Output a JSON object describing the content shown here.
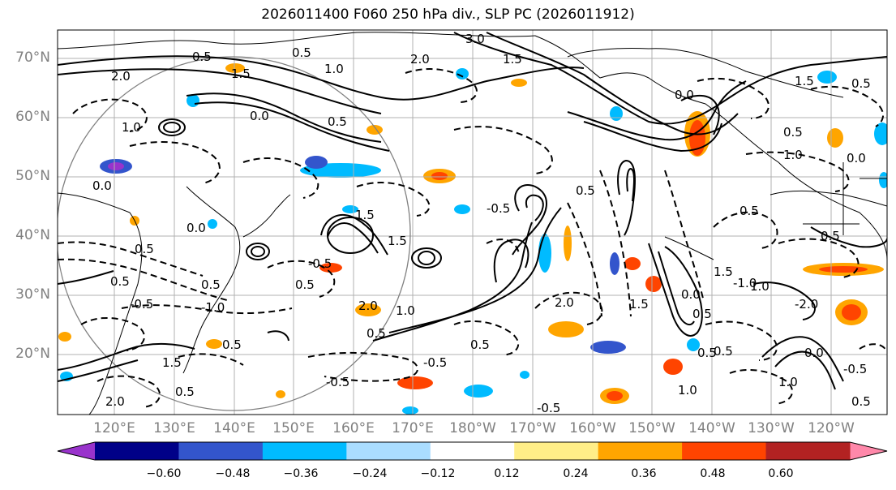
{
  "title": "2026011400 F060 250 hPa div., SLP PC (2026011912)",
  "lat_labels": [
    "70°N",
    "60°N",
    "50°N",
    "40°N",
    "30°N",
    "20°N"
  ],
  "lon_labels": [
    "120°E",
    "130°E",
    "140°E",
    "150°E",
    "160°E",
    "170°E",
    "180°W",
    "170°W",
    "160°W",
    "150°W",
    "140°W",
    "130°W",
    "120°W"
  ],
  "colorbar": {
    "ticks": [
      "−0.60",
      "−0.48",
      "−0.36",
      "−0.24",
      "−0.12",
      "0.12",
      "0.24",
      "0.36",
      "0.48",
      "0.60"
    ],
    "colors": [
      "#9933cc",
      "#000088",
      "#3355cc",
      "#00bbff",
      "#aaddff",
      "#ffffff",
      "#ffee88",
      "#ffa500",
      "#ff4400",
      "#b22222",
      "#ff88aa"
    ]
  },
  "contour_labels": [
    "3.0",
    "2.0",
    "1.5",
    "0.5",
    "0.0",
    "1.0",
    "0.5",
    "0.5",
    "1.0",
    "2.0",
    "1.5",
    "0.5",
    "1.5",
    "1.0",
    "0.5",
    "0.0",
    "0.5",
    "1.0",
    "1.5",
    "2.0",
    "0.5",
    "0.5",
    "-0.5",
    "0.0",
    "0.5",
    "1.0",
    "2.0",
    "1.5",
    "2.0",
    "0.5",
    "0.5",
    "0.5",
    "0.0",
    "-0.5",
    "0.5",
    "-0.5",
    "1.0",
    "0.5",
    "1.0",
    "-0.5",
    "-0.5",
    "-1.0",
    "0.5",
    "0.5",
    "1.5",
    "-0.5",
    "-0.5",
    "1.5",
    "0.0",
    "0.5",
    "1.5",
    "0.5",
    "-2.0",
    "0.0",
    "-1.0",
    "0.0",
    "0.5",
    "0.5"
  ]
}
